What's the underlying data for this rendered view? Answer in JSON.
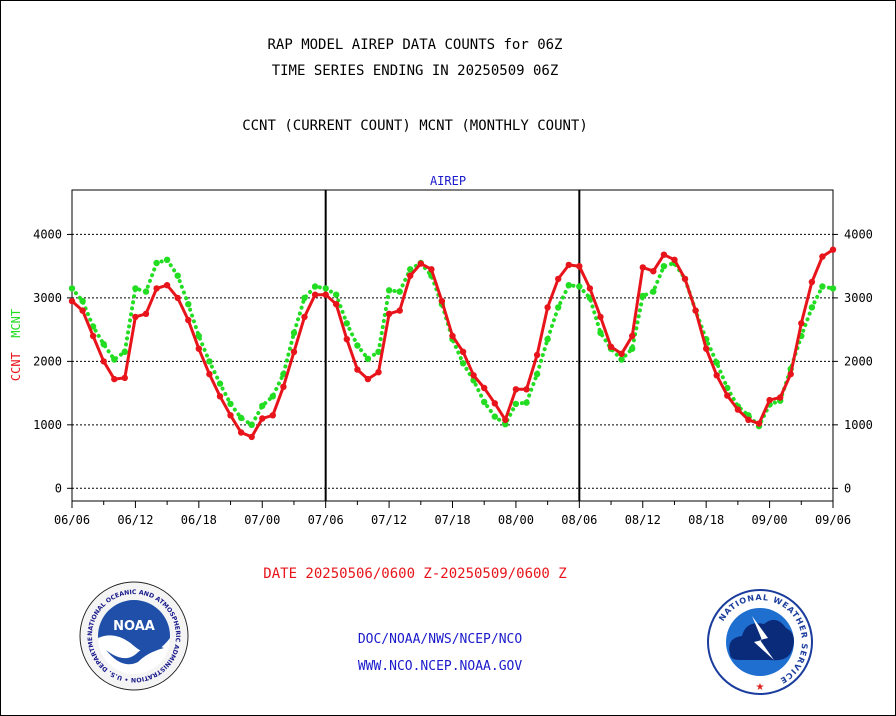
{
  "title_line1": "RAP MODEL AIREP DATA COUNTS for 06Z",
  "title_line2": "TIME SERIES ENDING IN 20250509 06Z",
  "title_line3": "CCNT (CURRENT COUNT) MCNT (MONTHLY COUNT)",
  "date_range": "DATE 20250506/0600 Z-20250509/0600 Z",
  "footer": {
    "org_path": "DOC/NOAA/NWS/NCEP/NCO",
    "website": "WWW.NCO.NCEP.NOAA.GOV",
    "noaa_logo_text": "NOAA",
    "noaa_seal_text": "NATIONAL OCEANIC AND ATMOSPHERIC ADMINISTRATION • U.S. DEPARTMENT OF COMMERCE •",
    "nws_seal_text": "NATIONAL WEATHER SERVICE"
  },
  "colors": {
    "ccnt": "#e8141b",
    "mcnt": "#22dd22",
    "grid": "#000000",
    "panel_title": "#1a1acc",
    "date_text": "#e8141b"
  },
  "chart_data": {
    "type": "line",
    "panel_title": "AIREP",
    "ylabel_parts": [
      {
        "text": "CCNT",
        "color": "#e8141b"
      },
      {
        "text": "MCNT",
        "color": "#22dd22"
      }
    ],
    "x_tick_labels": [
      "06/06",
      "06/12",
      "06/18",
      "07/00",
      "07/06",
      "07/12",
      "07/18",
      "08/00",
      "08/06",
      "08/12",
      "08/18",
      "09/00",
      "09/06"
    ],
    "x_hours": [
      0,
      1,
      2,
      3,
      4,
      5,
      6,
      7,
      8,
      9,
      10,
      11,
      12,
      13,
      14,
      15,
      16,
      17,
      18,
      19,
      20,
      21,
      22,
      23,
      24,
      25,
      26,
      27,
      28,
      29,
      30,
      31,
      32,
      33,
      34,
      35,
      36,
      37,
      38,
      39,
      40,
      41,
      42,
      43,
      44,
      45,
      46,
      47,
      48,
      49,
      50,
      51,
      52,
      53,
      54,
      55,
      56,
      57,
      58,
      59,
      60,
      61,
      62,
      63,
      64,
      65,
      66,
      67,
      68,
      69,
      70,
      71,
      72
    ],
    "x_range_hours": [
      0,
      72
    ],
    "ylim": [
      -200,
      4700
    ],
    "yticks": [
      0,
      1000,
      2000,
      3000,
      4000
    ],
    "day_separators_hours": [
      24,
      48
    ],
    "grid": "horizontal",
    "series": [
      {
        "name": "CCNT",
        "color": "#e8141b",
        "style": "solid",
        "values": [
          2950,
          2800,
          2400,
          2000,
          1720,
          1740,
          2700,
          2750,
          3150,
          3200,
          3000,
          2650,
          2200,
          1800,
          1450,
          1150,
          880,
          810,
          1100,
          1150,
          1600,
          2150,
          2700,
          3050,
          3050,
          2900,
          2350,
          1870,
          1720,
          1830,
          2750,
          2800,
          3350,
          3540,
          3450,
          2950,
          2400,
          2150,
          1780,
          1580,
          1340,
          1080,
          1560,
          1560,
          2100,
          2850,
          3300,
          3520,
          3500,
          3150,
          2700,
          2230,
          2120,
          2400,
          3480,
          3420,
          3680,
          3600,
          3300,
          2800,
          2200,
          1780,
          1460,
          1240,
          1080,
          1020,
          1390,
          1430,
          1800,
          2600,
          3250,
          3650,
          3760
        ]
      },
      {
        "name": "MCNT",
        "color": "#22dd22",
        "style": "dotted",
        "values": [
          3150,
          2950,
          2550,
          2270,
          2030,
          2150,
          3150,
          3100,
          3550,
          3600,
          3350,
          2900,
          2400,
          2000,
          1650,
          1330,
          1110,
          1000,
          1300,
          1450,
          1800,
          2450,
          3000,
          3180,
          3150,
          3050,
          2600,
          2250,
          2040,
          2150,
          3120,
          3100,
          3450,
          3550,
          3350,
          2900,
          2350,
          1970,
          1700,
          1360,
          1130,
          1010,
          1330,
          1350,
          1800,
          2350,
          2850,
          3200,
          3180,
          3000,
          2450,
          2200,
          2030,
          2200,
          3030,
          3100,
          3500,
          3550,
          3300,
          2800,
          2350,
          1980,
          1580,
          1290,
          1150,
          980,
          1320,
          1380,
          1880,
          2400,
          2850,
          3180,
          3150
        ]
      }
    ]
  }
}
